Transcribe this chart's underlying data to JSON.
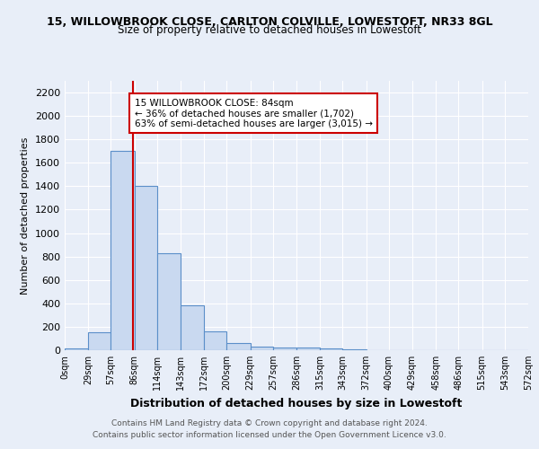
{
  "title1": "15, WILLOWBROOK CLOSE, CARLTON COLVILLE, LOWESTOFT, NR33 8GL",
  "title2": "Size of property relative to detached houses in Lowestoft",
  "xlabel": "Distribution of detached houses by size in Lowestoft",
  "ylabel": "Number of detached properties",
  "bar_edges": [
    0,
    29,
    57,
    86,
    114,
    143,
    172,
    200,
    229,
    257,
    286,
    315,
    343,
    372,
    400,
    429,
    458,
    486,
    515,
    543,
    572
  ],
  "bar_heights": [
    15,
    150,
    1700,
    1400,
    830,
    380,
    160,
    65,
    30,
    25,
    20,
    15,
    10,
    0,
    0,
    0,
    0,
    0,
    0,
    0
  ],
  "bar_color": "#c9d9f0",
  "bar_edge_color": "#5b8fc9",
  "vline_x": 84,
  "vline_color": "#cc0000",
  "annotation_line1": "15 WILLOWBROOK CLOSE: 84sqm",
  "annotation_line2": "← 36% of detached houses are smaller (1,702)",
  "annotation_line3": "63% of semi-detached houses are larger (3,015) →",
  "annotation_box_color": "#ffffff",
  "annotation_box_edge": "#cc0000",
  "ylim": [
    0,
    2300
  ],
  "yticks": [
    0,
    200,
    400,
    600,
    800,
    1000,
    1200,
    1400,
    1600,
    1800,
    2000,
    2200
  ],
  "xlabels": [
    "0sqm",
    "29sqm",
    "57sqm",
    "86sqm",
    "114sqm",
    "143sqm",
    "172sqm",
    "200sqm",
    "229sqm",
    "257sqm",
    "286sqm",
    "315sqm",
    "343sqm",
    "372sqm",
    "400sqm",
    "429sqm",
    "458sqm",
    "486sqm",
    "515sqm",
    "543sqm",
    "572sqm"
  ],
  "background_color": "#e8eef8",
  "grid_color": "#ffffff",
  "footnote1": "Contains HM Land Registry data © Crown copyright and database right 2024.",
  "footnote2": "Contains public sector information licensed under the Open Government Licence v3.0."
}
